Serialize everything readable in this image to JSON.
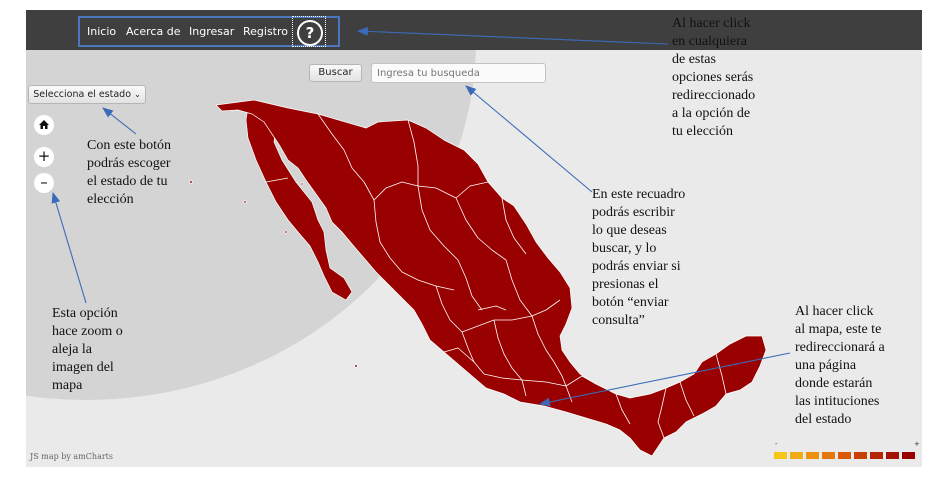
{
  "navbar": {
    "items": [
      "Inicio",
      "Acerca de",
      "Ingresar",
      "Registro"
    ],
    "help_label": "?"
  },
  "search": {
    "button_label": "Buscar",
    "placeholder": "Ingresa tu busqueda"
  },
  "state_select": {
    "label": "Selecciona el estado"
  },
  "zoom": {
    "home_icon": "home-icon",
    "zoom_in_label": "+",
    "zoom_out_label": "–"
  },
  "map": {
    "credit": "JS map by amCharts",
    "fill_color": "#990000",
    "border_color": "#ffffff"
  },
  "legend": {
    "min_label": "-",
    "max_label": "+",
    "colors": [
      "#f5c518",
      "#f1ac12",
      "#ec920f",
      "#e3760c",
      "#d85a09",
      "#c83f06",
      "#b62504",
      "#a41202",
      "#990000"
    ]
  },
  "annotations": {
    "nav": "Al hacer click\nen cualquiera\nde estas\nopciones serás\nredireccionado\na la opción de\ntu elección",
    "select": "Con este botón\npodrás escoger\nel estado de tu\nelección",
    "zoom": "Esta opción\nhace zoom o\naleja la\nimagen del\nmapa",
    "search": "En este recuadro\npodrás escribir\nlo que deseas\nbuscar, y lo\npodrás enviar si\npresionas el\nbotón “enviar\nconsulta”",
    "map": "Al hacer click\nal mapa, este te\nredireccionará a\nuna página\ndonde estarán\nlas intituciones\ndel estado"
  }
}
